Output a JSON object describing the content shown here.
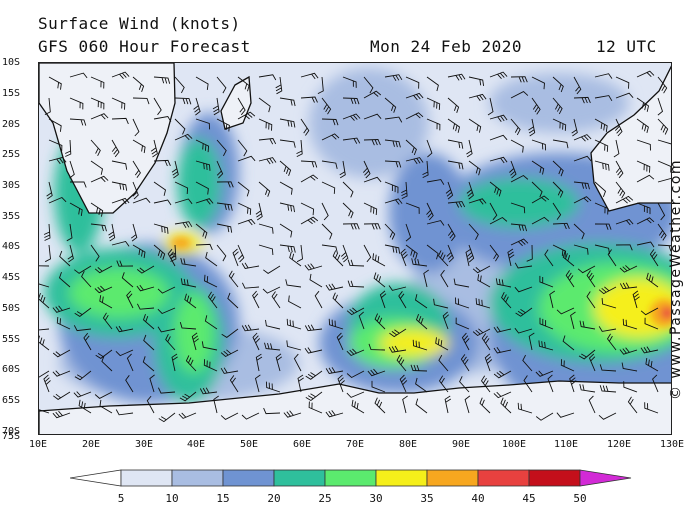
{
  "header": {
    "title": "Surface Wind (knots)",
    "subtitle": "GFS 060 Hour Forecast",
    "date": "Mon 24 Feb 2020",
    "time": "12 UTC"
  },
  "credit": "© www.PassageWeather.com",
  "map": {
    "region": "Southern Indian Ocean",
    "lat_labels": [
      "10S",
      "15S",
      "20S",
      "25S",
      "30S",
      "35S",
      "40S",
      "45S",
      "50S",
      "55S",
      "60S",
      "65S",
      "70S",
      "75S"
    ],
    "lon_labels": [
      "10E",
      "20E",
      "30E",
      "40E",
      "50E",
      "60E",
      "70E",
      "80E",
      "90E",
      "100E",
      "110E",
      "120E",
      "130E"
    ],
    "lat_range": [
      -10,
      -75
    ],
    "lon_range": [
      10,
      130
    ]
  },
  "legend": {
    "unit": "knots",
    "levels": [
      "5",
      "10",
      "15",
      "20",
      "25",
      "30",
      "35",
      "40",
      "45",
      "50"
    ],
    "colors": [
      "#ffffff",
      "#dfe6f4",
      "#a9bde2",
      "#6f93d2",
      "#2fbf9c",
      "#5bea6e",
      "#f5ef1a",
      "#f7a71f",
      "#e8413f",
      "#c40f1b",
      "#d22ad6"
    ]
  }
}
